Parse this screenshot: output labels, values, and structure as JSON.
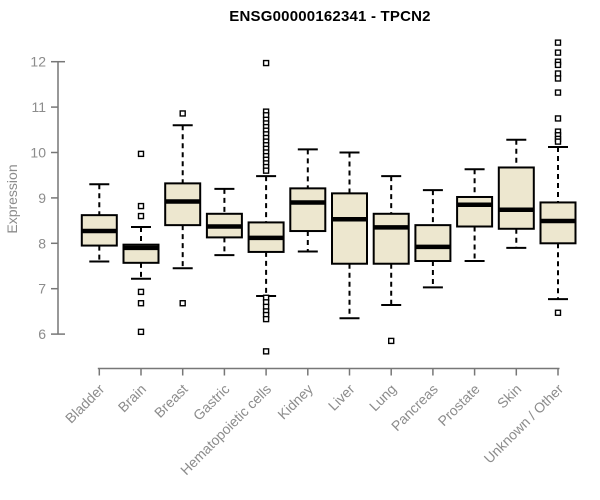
{
  "title": "ENSG00000162341 - TPCN2",
  "colors": {
    "box_fill": "#EDE7CF",
    "box_stroke": "#000000",
    "outlier_fill": "#FFFFFF",
    "axis_line": "#777777",
    "axis_text": "#8C8C8C",
    "background": "#FFFFFF"
  },
  "chart_data": {
    "type": "boxplot",
    "title": "ENSG00000162341 - TPCN2",
    "xlabel": "",
    "ylabel": "Expression",
    "ylim": [
      6,
      12
    ],
    "y_ticks": [
      6,
      7,
      8,
      9,
      10,
      11,
      12
    ],
    "grid": false,
    "legend": "none",
    "categories": [
      "Bladder",
      "Brain",
      "Breast",
      "Gastric",
      "Hematopoietic cells",
      "Kidney",
      "Liver",
      "Lung",
      "Pancreas",
      "Prostate",
      "Skin",
      "Unknown / Other"
    ],
    "series": [
      {
        "name": "Bladder",
        "low": 7.6,
        "q1": 7.95,
        "median": 8.27,
        "q3": 8.62,
        "high": 9.3,
        "outliers": []
      },
      {
        "name": "Brain",
        "low": 7.22,
        "q1": 7.57,
        "median": 7.9,
        "q3": 7.97,
        "high": 8.36,
        "outliers": [
          9.97,
          8.82,
          8.6,
          6.93,
          6.68,
          6.05
        ]
      },
      {
        "name": "Breast",
        "low": 7.45,
        "q1": 8.4,
        "median": 8.92,
        "q3": 9.32,
        "high": 10.6,
        "outliers": [
          10.86,
          6.68
        ]
      },
      {
        "name": "Gastric",
        "low": 7.74,
        "q1": 8.13,
        "median": 8.37,
        "q3": 8.65,
        "high": 9.2,
        "outliers": []
      },
      {
        "name": "Hematopoietic cells",
        "low": 6.84,
        "q1": 7.81,
        "median": 8.12,
        "q3": 8.46,
        "high": 9.48,
        "outliers": [
          11.97,
          10.9,
          10.82,
          10.72,
          10.64,
          10.56,
          10.48,
          10.4,
          10.32,
          10.24,
          10.16,
          10.08,
          10.0,
          9.92,
          9.84,
          9.76,
          9.68,
          9.6,
          6.8,
          6.7,
          6.6,
          6.5,
          6.42,
          6.33,
          5.62
        ]
      },
      {
        "name": "Kidney",
        "low": 7.82,
        "q1": 8.27,
        "median": 8.9,
        "q3": 9.21,
        "high": 10.07,
        "outliers": []
      },
      {
        "name": "Liver",
        "low": 6.35,
        "q1": 7.55,
        "median": 8.53,
        "q3": 9.1,
        "high": 10.0,
        "outliers": []
      },
      {
        "name": "Lung",
        "low": 6.64,
        "q1": 7.55,
        "median": 8.35,
        "q3": 8.65,
        "high": 9.48,
        "outliers": [
          5.85
        ]
      },
      {
        "name": "Pancreas",
        "low": 7.03,
        "q1": 7.61,
        "median": 7.92,
        "q3": 8.4,
        "high": 9.17,
        "outliers": []
      },
      {
        "name": "Prostate",
        "low": 7.61,
        "q1": 8.37,
        "median": 8.85,
        "q3": 9.02,
        "high": 9.63,
        "outliers": []
      },
      {
        "name": "Skin",
        "low": 7.9,
        "q1": 8.32,
        "median": 8.74,
        "q3": 9.67,
        "high": 10.28,
        "outliers": []
      },
      {
        "name": "Unknown / Other",
        "low": 6.77,
        "q1": 8.0,
        "median": 8.49,
        "q3": 8.9,
        "high": 10.12,
        "outliers": [
          12.42,
          12.2,
          12.0,
          11.93,
          11.74,
          11.63,
          11.32,
          10.75,
          10.46,
          10.38,
          10.3,
          10.24,
          6.47
        ]
      }
    ]
  }
}
